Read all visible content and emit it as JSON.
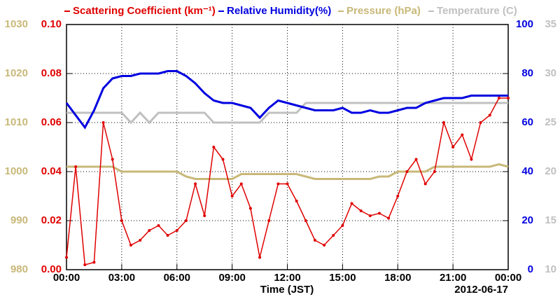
{
  "chart_data": {
    "type": "line",
    "x_label": "Time (JST)",
    "date_label": "2012-06-17",
    "x": [
      0,
      0.5,
      1,
      1.5,
      2,
      2.5,
      3,
      3.5,
      4,
      4.5,
      5,
      5.5,
      6,
      6.5,
      7,
      7.5,
      8,
      8.5,
      9,
      9.5,
      10,
      10.5,
      11,
      11.5,
      12,
      12.5,
      13,
      13.5,
      14,
      14.5,
      15,
      15.5,
      16,
      16.5,
      17,
      17.5,
      18,
      18.5,
      19,
      19.5,
      20,
      20.5,
      21,
      21.5,
      22,
      22.5,
      23,
      23.5,
      24
    ],
    "xlim": [
      0,
      24
    ],
    "xticks": [
      {
        "value": 0,
        "label": "00:00"
      },
      {
        "value": 3,
        "label": "03:00"
      },
      {
        "value": 6,
        "label": "06:00"
      },
      {
        "value": 9,
        "label": "09:00"
      },
      {
        "value": 12,
        "label": "12:00"
      },
      {
        "value": 15,
        "label": "15:00"
      },
      {
        "value": 18,
        "label": "18:00"
      },
      {
        "value": 21,
        "label": "21:00"
      },
      {
        "value": 24,
        "label": "00:00"
      }
    ],
    "ylim": [
      0,
      0.1
    ],
    "yticks": [
      {
        "value": 0,
        "label": "0.00"
      },
      {
        "value": 0.02,
        "label": "0.02"
      },
      {
        "value": 0.04,
        "label": "0.04"
      },
      {
        "value": 0.06,
        "label": "0.06"
      },
      {
        "value": 0.08,
        "label": "0.08"
      },
      {
        "value": 0.1,
        "label": "0.10"
      }
    ],
    "y2lim": [
      0,
      100
    ],
    "y2ticks": [
      0,
      20,
      40,
      60,
      80,
      100
    ],
    "y3lim": [
      980,
      1030
    ],
    "y3ticks": [
      980,
      990,
      1000,
      1010,
      1020,
      1030
    ],
    "y4lim": [
      10,
      35
    ],
    "y4ticks": [
      10,
      15,
      20,
      25,
      30,
      35
    ],
    "grid": true,
    "series": [
      {
        "name": "Scattering Coefficient (km⁻¹)",
        "color": "#e00000",
        "axis": "y",
        "markers": true,
        "values": [
          0.005,
          0.042,
          0.002,
          0.003,
          0.06,
          0.045,
          0.02,
          0.01,
          0.012,
          0.016,
          0.018,
          0.014,
          0.016,
          0.02,
          0.035,
          0.022,
          0.05,
          0.045,
          0.03,
          0.035,
          0.025,
          0.005,
          0.02,
          0.035,
          0.035,
          0.028,
          0.02,
          0.012,
          0.01,
          0.014,
          0.018,
          0.027,
          0.024,
          0.022,
          0.023,
          0.021,
          0.03,
          0.04,
          0.045,
          0.035,
          0.04,
          0.06,
          0.05,
          0.055,
          0.045,
          0.06,
          0.063,
          0.07,
          0.07
        ]
      },
      {
        "name": "Relative Humidity(%)",
        "color": "#0000e0",
        "axis": "y2",
        "values": [
          68,
          63,
          58,
          65,
          74,
          78,
          79,
          79,
          80,
          80,
          80,
          81,
          81,
          79,
          76,
          72,
          69,
          68,
          68,
          67,
          66,
          62,
          66,
          69,
          68,
          67,
          66,
          65,
          65,
          65,
          66,
          64,
          64,
          65,
          64,
          64,
          65,
          66,
          66,
          68,
          69,
          70,
          70,
          70,
          71,
          71,
          71,
          71,
          71
        ]
      },
      {
        "name": "Pressure (hPa)",
        "color": "#c8b878",
        "axis": "y3",
        "values": [
          1001,
          1001,
          1001,
          1001,
          1001,
          1001,
          1000,
          1000,
          1000,
          1000,
          1000,
          1000,
          1000,
          999,
          998.5,
          998.5,
          998.5,
          998.5,
          998.5,
          999.5,
          999.5,
          999.5,
          999.5,
          999.5,
          999.5,
          999.5,
          999,
          998.5,
          998.5,
          998.5,
          998.5,
          998.5,
          998.5,
          998.5,
          999,
          999,
          1000,
          1000,
          1000,
          1000,
          1001,
          1001,
          1001,
          1001,
          1001,
          1001,
          1001,
          1001.5,
          1001
        ]
      },
      {
        "name": "Temperature (C)",
        "color": "#c0c0c0",
        "axis": "y4",
        "values": [
          26,
          26,
          26,
          26,
          26,
          26,
          26,
          25,
          26,
          25,
          26,
          26,
          26,
          26,
          26,
          26,
          25,
          25,
          25,
          25,
          25,
          25,
          26,
          26,
          26,
          26,
          27,
          27,
          27,
          27,
          27,
          27,
          27,
          27,
          27,
          27,
          27,
          27,
          27,
          27,
          27,
          27,
          27,
          27,
          27,
          27,
          27,
          27,
          27
        ]
      }
    ]
  }
}
